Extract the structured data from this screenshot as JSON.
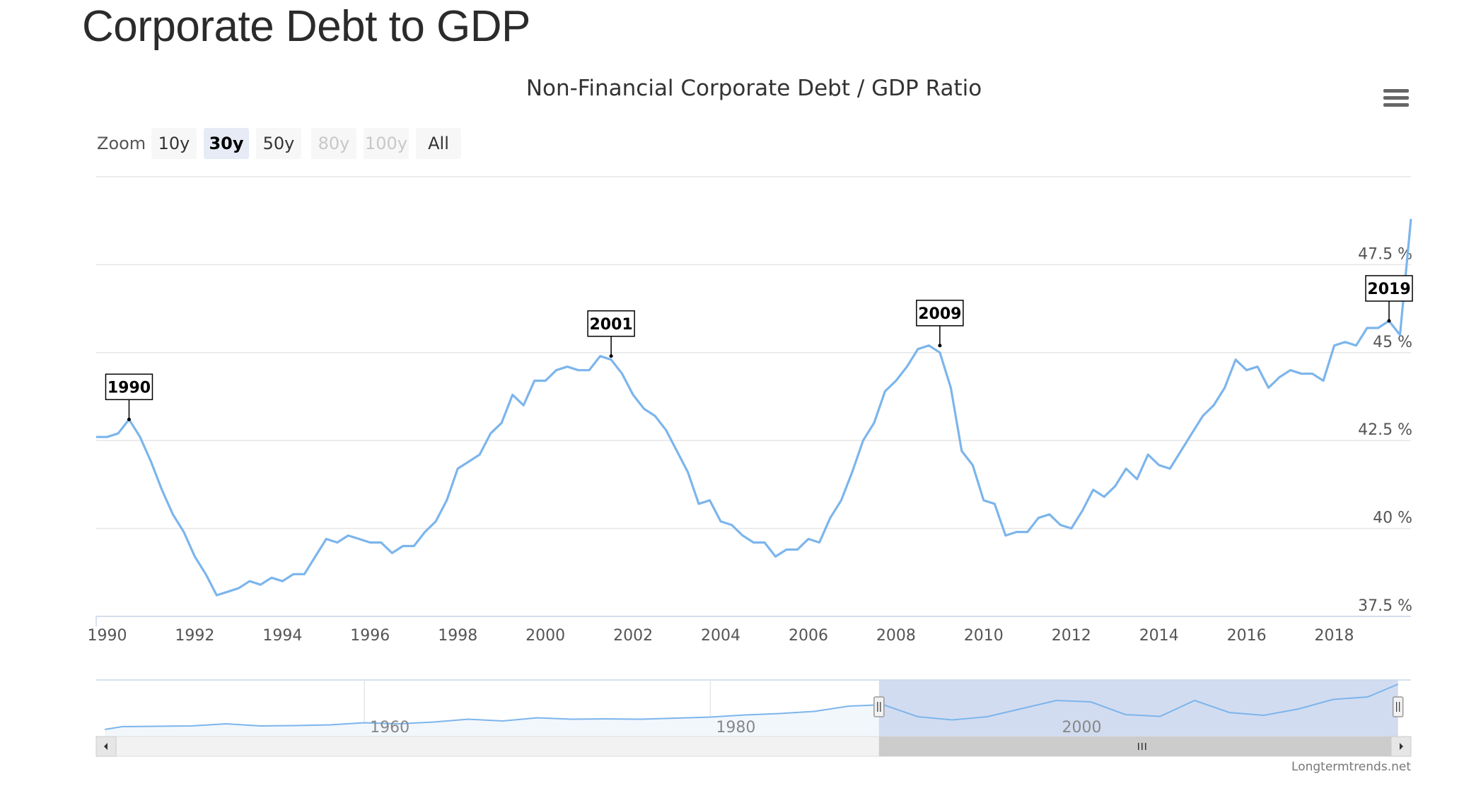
{
  "page": {
    "title": "Corporate Debt to GDP"
  },
  "zoom": {
    "label": "Zoom",
    "buttons": [
      {
        "label": "10y",
        "state": "normal"
      },
      {
        "label": "30y",
        "state": "active"
      },
      {
        "label": "50y",
        "state": "normal"
      },
      {
        "label": "80y",
        "state": "disabled"
      },
      {
        "label": "100y",
        "state": "disabled"
      },
      {
        "label": "All",
        "state": "normal"
      }
    ]
  },
  "menu": {
    "icon": "hamburger-menu-icon"
  },
  "credit": "Longtermtrends.net",
  "colors": {
    "line": "#7cb5ec",
    "grid": "#e6e6e6",
    "nav_mask": "#cdd8ee",
    "nav_fill": "#f2f7fc"
  },
  "chart_data": {
    "type": "line",
    "title": "Non-Financial Corporate Debt / GDP Ratio",
    "xlabel": "",
    "ylabel": "",
    "xlim": [
      1989.75,
      2019.75
    ],
    "ylim": [
      37.5,
      50
    ],
    "x_ticks": [
      "1990",
      "1992",
      "1994",
      "1996",
      "1998",
      "2000",
      "2002",
      "2004",
      "2006",
      "2008",
      "2010",
      "2012",
      "2014",
      "2016",
      "2018"
    ],
    "y_ticks": [
      "37.5 %",
      "40 %",
      "42.5 %",
      "45 %",
      "47.5 %"
    ],
    "grid": true,
    "legend": "none",
    "flags": [
      {
        "label": "1990",
        "x": 1990.5,
        "y": 43.1
      },
      {
        "label": "2001",
        "x": 2001.5,
        "y": 44.9
      },
      {
        "label": "2009",
        "x": 2009.0,
        "y": 45.2
      },
      {
        "label": "2019",
        "x": 2019.25,
        "y": 45.9
      }
    ],
    "series": [
      {
        "values": [
          [
            1989.75,
            42.6
          ],
          [
            1990.0,
            42.6
          ],
          [
            1990.25,
            42.7
          ],
          [
            1990.5,
            43.1
          ],
          [
            1990.75,
            42.6
          ],
          [
            1991.0,
            41.9
          ],
          [
            1991.25,
            41.1
          ],
          [
            1991.5,
            40.4
          ],
          [
            1991.75,
            39.9
          ],
          [
            1992.0,
            39.2
          ],
          [
            1992.25,
            38.7
          ],
          [
            1992.5,
            38.1
          ],
          [
            1992.75,
            38.2
          ],
          [
            1993.0,
            38.3
          ],
          [
            1993.25,
            38.5
          ],
          [
            1993.5,
            38.4
          ],
          [
            1993.75,
            38.6
          ],
          [
            1994.0,
            38.5
          ],
          [
            1994.25,
            38.7
          ],
          [
            1994.5,
            38.7
          ],
          [
            1994.75,
            39.2
          ],
          [
            1995.0,
            39.7
          ],
          [
            1995.25,
            39.6
          ],
          [
            1995.5,
            39.8
          ],
          [
            1995.75,
            39.7
          ],
          [
            1996.0,
            39.6
          ],
          [
            1996.25,
            39.6
          ],
          [
            1996.5,
            39.3
          ],
          [
            1996.75,
            39.5
          ],
          [
            1997.0,
            39.5
          ],
          [
            1997.25,
            39.9
          ],
          [
            1997.5,
            40.2
          ],
          [
            1997.75,
            40.8
          ],
          [
            1998.0,
            41.7
          ],
          [
            1998.25,
            41.9
          ],
          [
            1998.5,
            42.1
          ],
          [
            1998.75,
            42.7
          ],
          [
            1999.0,
            43.0
          ],
          [
            1999.25,
            43.8
          ],
          [
            1999.5,
            43.5
          ],
          [
            1999.75,
            44.2
          ],
          [
            2000.0,
            44.2
          ],
          [
            2000.25,
            44.5
          ],
          [
            2000.5,
            44.6
          ],
          [
            2000.75,
            44.5
          ],
          [
            2001.0,
            44.5
          ],
          [
            2001.25,
            44.9
          ],
          [
            2001.5,
            44.8
          ],
          [
            2001.75,
            44.4
          ],
          [
            2002.0,
            43.8
          ],
          [
            2002.25,
            43.4
          ],
          [
            2002.5,
            43.2
          ],
          [
            2002.75,
            42.8
          ],
          [
            2003.0,
            42.2
          ],
          [
            2003.25,
            41.6
          ],
          [
            2003.5,
            40.7
          ],
          [
            2003.75,
            40.8
          ],
          [
            2004.0,
            40.2
          ],
          [
            2004.25,
            40.1
          ],
          [
            2004.5,
            39.8
          ],
          [
            2004.75,
            39.6
          ],
          [
            2005.0,
            39.6
          ],
          [
            2005.25,
            39.2
          ],
          [
            2005.5,
            39.4
          ],
          [
            2005.75,
            39.4
          ],
          [
            2006.0,
            39.7
          ],
          [
            2006.25,
            39.6
          ],
          [
            2006.5,
            40.3
          ],
          [
            2006.75,
            40.8
          ],
          [
            2007.0,
            41.6
          ],
          [
            2007.25,
            42.5
          ],
          [
            2007.5,
            43.0
          ],
          [
            2007.75,
            43.9
          ],
          [
            2008.0,
            44.2
          ],
          [
            2008.25,
            44.6
          ],
          [
            2008.5,
            45.1
          ],
          [
            2008.75,
            45.2
          ],
          [
            2009.0,
            45.0
          ],
          [
            2009.25,
            44.0
          ],
          [
            2009.5,
            42.2
          ],
          [
            2009.75,
            41.8
          ],
          [
            2010.0,
            40.8
          ],
          [
            2010.25,
            40.7
          ],
          [
            2010.5,
            39.8
          ],
          [
            2010.75,
            39.9
          ],
          [
            2011.0,
            39.9
          ],
          [
            2011.25,
            40.3
          ],
          [
            2011.5,
            40.4
          ],
          [
            2011.75,
            40.1
          ],
          [
            2012.0,
            40.0
          ],
          [
            2012.25,
            40.5
          ],
          [
            2012.5,
            41.1
          ],
          [
            2012.75,
            40.9
          ],
          [
            2013.0,
            41.2
          ],
          [
            2013.25,
            41.7
          ],
          [
            2013.5,
            41.4
          ],
          [
            2013.75,
            42.1
          ],
          [
            2014.0,
            41.8
          ],
          [
            2014.25,
            41.7
          ],
          [
            2014.5,
            42.2
          ],
          [
            2014.75,
            42.7
          ],
          [
            2015.0,
            43.2
          ],
          [
            2015.25,
            43.5
          ],
          [
            2015.5,
            44.0
          ],
          [
            2015.75,
            44.8
          ],
          [
            2016.0,
            44.5
          ],
          [
            2016.25,
            44.6
          ],
          [
            2016.5,
            44.0
          ],
          [
            2016.75,
            44.3
          ],
          [
            2017.0,
            44.5
          ],
          [
            2017.25,
            44.4
          ],
          [
            2017.5,
            44.4
          ],
          [
            2017.75,
            44.2
          ],
          [
            2018.0,
            45.2
          ],
          [
            2018.25,
            45.3
          ],
          [
            2018.5,
            45.2
          ],
          [
            2018.75,
            45.7
          ],
          [
            2019.0,
            45.7
          ],
          [
            2019.25,
            45.9
          ],
          [
            2019.5,
            45.5
          ],
          [
            2019.75,
            48.8
          ]
        ]
      }
    ],
    "navigator": {
      "x_ticks": [
        "1960",
        "1980",
        "2000"
      ],
      "xlim": [
        1944.5,
        2020.5
      ],
      "selection": [
        1989.75,
        2019.75
      ],
      "values": [
        [
          1945,
          36.0
        ],
        [
          1946,
          36.8
        ],
        [
          1948,
          36.9
        ],
        [
          1950,
          37.0
        ],
        [
          1952,
          37.6
        ],
        [
          1954,
          37.0
        ],
        [
          1956,
          37.1
        ],
        [
          1958,
          37.3
        ],
        [
          1960,
          37.9
        ],
        [
          1962,
          37.6
        ],
        [
          1964,
          38.1
        ],
        [
          1966,
          38.9
        ],
        [
          1968,
          38.4
        ],
        [
          1970,
          39.3
        ],
        [
          1972,
          38.9
        ],
        [
          1974,
          39.0
        ],
        [
          1976,
          38.9
        ],
        [
          1978,
          39.2
        ],
        [
          1980,
          39.5
        ],
        [
          1982,
          40.1
        ],
        [
          1984,
          40.5
        ],
        [
          1986,
          41.1
        ],
        [
          1988,
          42.6
        ],
        [
          1990,
          43.0
        ],
        [
          1992,
          39.6
        ],
        [
          1994,
          38.7
        ],
        [
          1996,
          39.6
        ],
        [
          1998,
          41.9
        ],
        [
          2000,
          44.2
        ],
        [
          2002,
          43.8
        ],
        [
          2004,
          40.2
        ],
        [
          2006,
          39.7
        ],
        [
          2008,
          44.2
        ],
        [
          2010,
          40.8
        ],
        [
          2012,
          40.0
        ],
        [
          2014,
          41.8
        ],
        [
          2016,
          44.5
        ],
        [
          2018,
          45.2
        ],
        [
          2019.75,
          48.8
        ]
      ]
    }
  }
}
